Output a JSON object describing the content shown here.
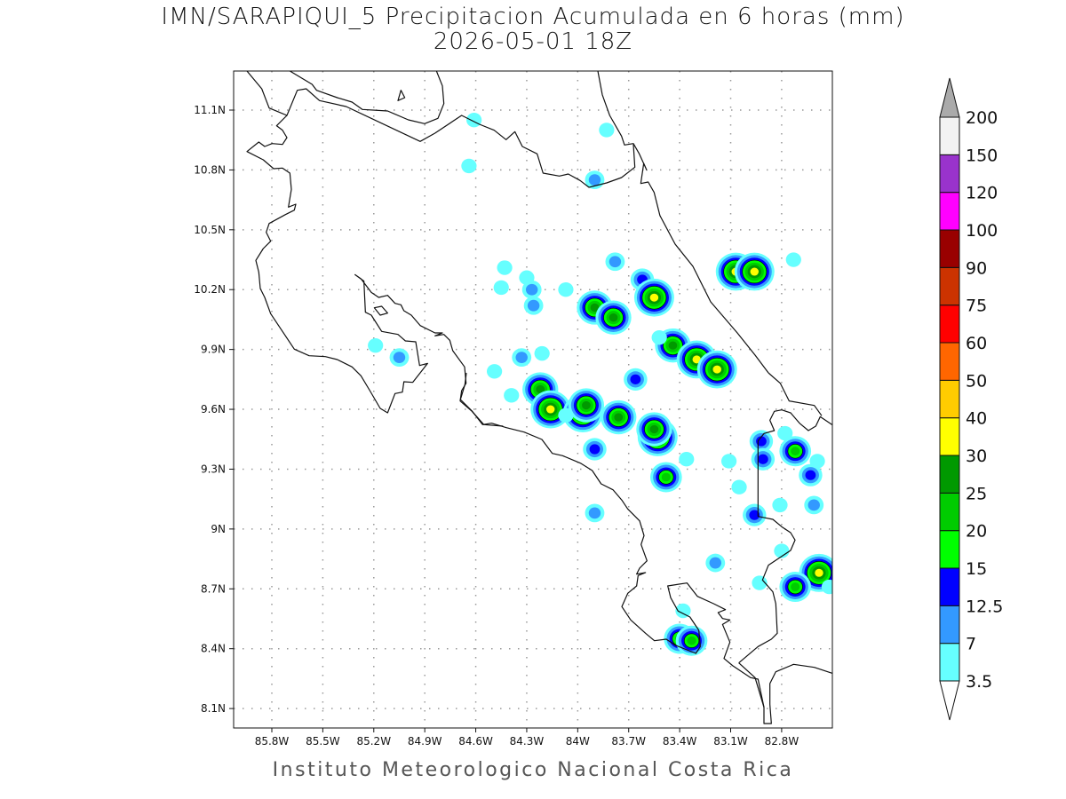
{
  "title": "IMN/SARAPIQUI_5 Precipitacion Acumulada en 6 horas (mm)",
  "subtitle": "2026-05-01 18Z",
  "footer": "Instituto Meteorologico Nacional Costa Rica",
  "chart_data": {
    "type": "heatmap",
    "map_extent": {
      "lon": [
        -86.0,
        -82.5
      ],
      "lat": [
        8.0,
        11.3
      ]
    },
    "grid": true,
    "lon_ticks": [
      {
        "v": -85.8,
        "label": "85.8W"
      },
      {
        "v": -85.5,
        "label": "85.5W"
      },
      {
        "v": -85.2,
        "label": "85.2W"
      },
      {
        "v": -84.9,
        "label": "84.9W"
      },
      {
        "v": -84.6,
        "label": "84.6W"
      },
      {
        "v": -84.3,
        "label": "84.3W"
      },
      {
        "v": -84.0,
        "label": "84W"
      },
      {
        "v": -83.7,
        "label": "83.7W"
      },
      {
        "v": -83.4,
        "label": "83.4W"
      },
      {
        "v": -83.1,
        "label": "83.1W"
      },
      {
        "v": -82.8,
        "label": "82.8W"
      }
    ],
    "lat_ticks": [
      {
        "v": 11.1,
        "label": "11.1N"
      },
      {
        "v": 10.8,
        "label": "10.8N"
      },
      {
        "v": 10.5,
        "label": "10.5N"
      },
      {
        "v": 10.2,
        "label": "10.2N"
      },
      {
        "v": 9.9,
        "label": "9.9N"
      },
      {
        "v": 9.6,
        "label": "9.6N"
      },
      {
        "v": 9.3,
        "label": "9.3N"
      },
      {
        "v": 9.0,
        "label": "9N"
      },
      {
        "v": 8.7,
        "label": "8.7N"
      },
      {
        "v": 8.4,
        "label": "8.4N"
      },
      {
        "v": 8.1,
        "label": "8.1N"
      }
    ],
    "colorbar": {
      "placement": "right",
      "levels": [
        3.5,
        7,
        12.5,
        15,
        20,
        25,
        30,
        40,
        50,
        60,
        75,
        90,
        100,
        120,
        150,
        200
      ],
      "labels": [
        "3.5",
        "7",
        "12.5",
        "15",
        "20",
        "25",
        "30",
        "40",
        "50",
        "60",
        "75",
        "90",
        "100",
        "120",
        "150",
        "200"
      ],
      "colors": [
        "#66ffff",
        "#3399ff",
        "#0000ff",
        "#00ff00",
        "#00cc00",
        "#009900",
        "#ffff00",
        "#ffcc00",
        "#ff6600",
        "#ff0000",
        "#cc3300",
        "#990000",
        "#ff00ff",
        "#9933cc",
        "#f2f2f2"
      ],
      "below_color": "#ffffff",
      "above_color": "#aaaaaa"
    },
    "precip_cells_mm": [
      {
        "lon": -83.83,
        "lat": 11.0,
        "max": 5
      },
      {
        "lon": -84.64,
        "lat": 10.82,
        "max": 5
      },
      {
        "lon": -84.61,
        "lat": 11.05,
        "max": 4
      },
      {
        "lon": -83.9,
        "lat": 10.75,
        "max": 9
      },
      {
        "lon": -84.43,
        "lat": 10.31,
        "max": 5
      },
      {
        "lon": -84.3,
        "lat": 10.26,
        "max": 5
      },
      {
        "lon": -84.45,
        "lat": 10.21,
        "max": 5
      },
      {
        "lon": -84.27,
        "lat": 10.2,
        "max": 9
      },
      {
        "lon": -84.26,
        "lat": 10.12,
        "max": 9
      },
      {
        "lon": -84.07,
        "lat": 10.2,
        "max": 5
      },
      {
        "lon": -83.78,
        "lat": 10.34,
        "max": 9
      },
      {
        "lon": -83.62,
        "lat": 10.25,
        "max": 14
      },
      {
        "lon": -83.9,
        "lat": 10.11,
        "max": 27
      },
      {
        "lon": -83.79,
        "lat": 10.06,
        "max": 27
      },
      {
        "lon": -83.55,
        "lat": 10.16,
        "max": 32
      },
      {
        "lon": -83.44,
        "lat": 9.92,
        "max": 27
      },
      {
        "lon": -83.52,
        "lat": 9.96,
        "max": 5
      },
      {
        "lon": -83.3,
        "lat": 9.85,
        "max": 35
      },
      {
        "lon": -83.18,
        "lat": 9.8,
        "max": 35
      },
      {
        "lon": -83.66,
        "lat": 9.75,
        "max": 14
      },
      {
        "lon": -83.07,
        "lat": 10.29,
        "max": 32
      },
      {
        "lon": -82.96,
        "lat": 10.29,
        "max": 35
      },
      {
        "lon": -82.73,
        "lat": 10.35,
        "max": 5
      },
      {
        "lon": -84.22,
        "lat": 9.7,
        "max": 27
      },
      {
        "lon": -84.16,
        "lat": 9.6,
        "max": 35
      },
      {
        "lon": -83.97,
        "lat": 9.58,
        "max": 35
      },
      {
        "lon": -83.95,
        "lat": 9.62,
        "max": 27
      },
      {
        "lon": -83.76,
        "lat": 9.56,
        "max": 28
      },
      {
        "lon": -83.53,
        "lat": 9.46,
        "max": 35
      },
      {
        "lon": -83.55,
        "lat": 9.5,
        "max": 27
      },
      {
        "lon": -83.9,
        "lat": 9.4,
        "max": 14
      },
      {
        "lon": -83.48,
        "lat": 9.26,
        "max": 22
      },
      {
        "lon": -84.07,
        "lat": 9.57,
        "max": 5
      },
      {
        "lon": -84.49,
        "lat": 9.79,
        "max": 5
      },
      {
        "lon": -84.33,
        "lat": 9.86,
        "max": 9
      },
      {
        "lon": -84.21,
        "lat": 9.88,
        "max": 5
      },
      {
        "lon": -85.05,
        "lat": 9.86,
        "max": 9
      },
      {
        "lon": -85.19,
        "lat": 9.92,
        "max": 4
      },
      {
        "lon": -84.39,
        "lat": 9.67,
        "max": 4
      },
      {
        "lon": -83.9,
        "lat": 9.08,
        "max": 9
      },
      {
        "lon": -83.19,
        "lat": 8.83,
        "max": 9
      },
      {
        "lon": -83.4,
        "lat": 8.45,
        "max": 22
      },
      {
        "lon": -83.33,
        "lat": 8.44,
        "max": 22
      },
      {
        "lon": -83.38,
        "lat": 8.59,
        "max": 5
      },
      {
        "lon": -82.96,
        "lat": 9.07,
        "max": 14
      },
      {
        "lon": -82.92,
        "lat": 9.44,
        "max": 14
      },
      {
        "lon": -82.91,
        "lat": 9.35,
        "max": 14
      },
      {
        "lon": -82.72,
        "lat": 9.39,
        "max": 22
      },
      {
        "lon": -82.63,
        "lat": 9.27,
        "max": 14
      },
      {
        "lon": -82.59,
        "lat": 9.34,
        "max": 5
      },
      {
        "lon": -82.61,
        "lat": 9.12,
        "max": 9
      },
      {
        "lon": -82.58,
        "lat": 8.78,
        "max": 35
      },
      {
        "lon": -82.72,
        "lat": 8.71,
        "max": 22
      },
      {
        "lon": -82.8,
        "lat": 8.89,
        "max": 5
      },
      {
        "lon": -82.93,
        "lat": 8.73,
        "max": 5
      },
      {
        "lon": -82.52,
        "lat": 8.71,
        "max": 5
      },
      {
        "lon": -82.81,
        "lat": 9.12,
        "max": 5
      },
      {
        "lon": -83.11,
        "lat": 9.34,
        "max": 4
      },
      {
        "lon": -83.05,
        "lat": 9.21,
        "max": 4
      },
      {
        "lon": -83.36,
        "lat": 9.35,
        "max": 4
      },
      {
        "lon": -82.78,
        "lat": 9.48,
        "max": 5
      }
    ]
  }
}
